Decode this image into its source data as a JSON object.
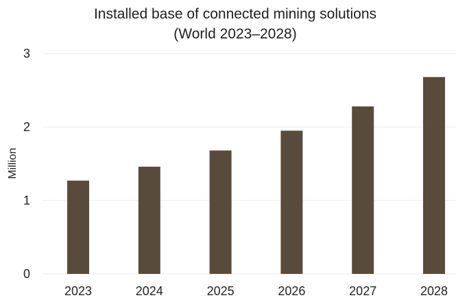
{
  "chart_data": {
    "type": "bar",
    "title": "Installed base of connected mining solutions",
    "subtitle": "(World 2023–2028)",
    "xlabel": "",
    "ylabel": "Million",
    "categories": [
      "2023",
      "2024",
      "2025",
      "2026",
      "2027",
      "2028"
    ],
    "values": [
      1.27,
      1.46,
      1.68,
      1.95,
      2.28,
      2.68
    ],
    "ylim": [
      0,
      3
    ],
    "yticks": [
      0,
      1,
      2,
      3
    ],
    "grid": true,
    "legend": "none",
    "colors": {
      "bar": "#594b3c",
      "grid": "#ebebeb"
    }
  }
}
